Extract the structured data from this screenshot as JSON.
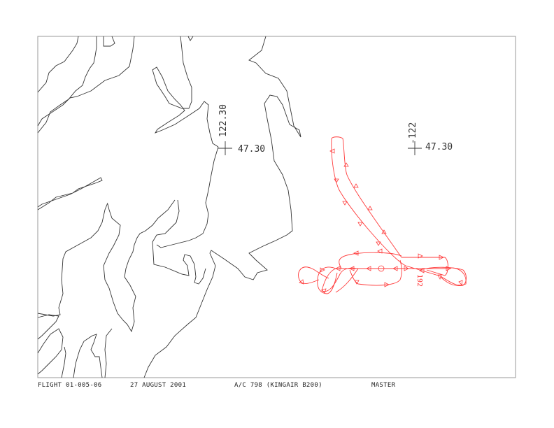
{
  "map": {
    "grid_marks": [
      {
        "longitude_label": "122.30",
        "latitude_label": "47.30"
      },
      {
        "longitude_label": "-122",
        "latitude_label": "47.30"
      }
    ],
    "track_label": "192",
    "colors": {
      "coastline": "#333333",
      "track": "#ff3b3b",
      "frame": "#999999"
    }
  },
  "footer": {
    "flight": "FLIGHT 01-005-06",
    "date": "27 AUGUST 2001",
    "aircraft": "A/C 798 (KINGAIR B200)",
    "version": "MASTER"
  }
}
